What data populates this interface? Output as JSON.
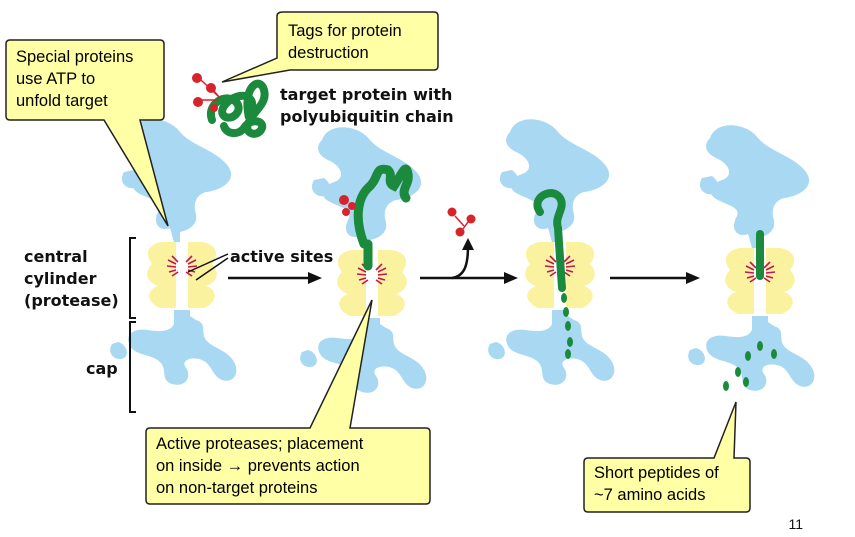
{
  "callouts": {
    "tags": "Tags for protein\ndestruction",
    "atp": "Special proteins\nuse ATP to\nunfold target",
    "proteases": "Active proteases; placement\non inside → prevents action\non non-target proteins",
    "peptides": "Short peptides of\n~7 amino acids"
  },
  "labels": {
    "target_protein": "target protein with\npolyubiquitin chain",
    "central_cylinder": "central\ncylinder\n(protease)",
    "active_sites": "active sites",
    "cap": "cap"
  },
  "slide_number": "11",
  "colors": {
    "cap": "#a9d8f3",
    "cylinder": "#fbf2a0",
    "protein": "#1b8a3c",
    "ubiquitin": "#d8232a",
    "active_site": "#c0165a",
    "callout_fill": "#ffffa6",
    "callout_border": "#222222"
  }
}
